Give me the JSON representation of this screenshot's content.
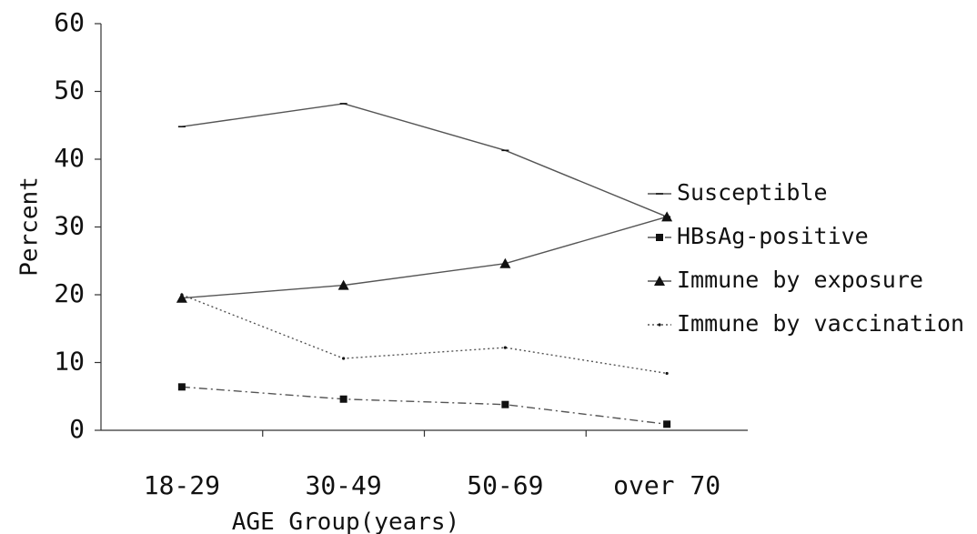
{
  "chart_data": {
    "type": "line",
    "title": "",
    "xlabel": "AGE Group(years)",
    "ylabel": "Percent",
    "ylim": [
      0,
      60
    ],
    "yticks": [
      0,
      10,
      20,
      30,
      40,
      50,
      60
    ],
    "categories": [
      "18-29",
      "30-49",
      "50-69",
      "over 70"
    ],
    "grid": false,
    "legend": "right",
    "series": [
      {
        "name": "Susceptible",
        "marker": "dash",
        "line_style": "solid",
        "values": [
          44.8,
          48.2,
          41.3,
          31.5
        ]
      },
      {
        "name": "HBsAg-positive",
        "marker": "square",
        "line_style": "dashdot",
        "values": [
          6.4,
          4.6,
          3.8,
          0.9
        ]
      },
      {
        "name": "Immune by exposure",
        "marker": "triangle",
        "line_style": "solid",
        "values": [
          19.5,
          21.4,
          24.6,
          31.5
        ]
      },
      {
        "name": "Immune by vaccination",
        "marker": "dot",
        "line_style": "dotted",
        "values": [
          20.0,
          10.6,
          12.2,
          8.4
        ]
      }
    ],
    "colors": {
      "line": "#555555",
      "marker": "#111111",
      "axis": "#333333"
    }
  }
}
